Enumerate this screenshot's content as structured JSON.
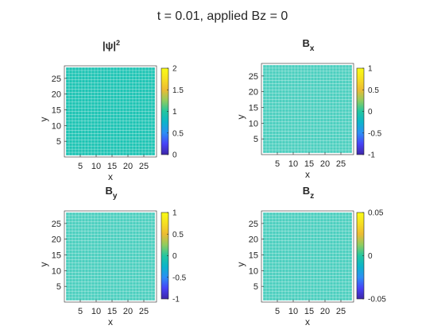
{
  "figure_title": "t = 0.01, applied Bz = 0",
  "colormap": [
    "#3e26a8",
    "#4743f7",
    "#2d8ef5",
    "#0cb4ca",
    "#22c6a0",
    "#8fcc60",
    "#ecbb33",
    "#f6df22",
    "#f9fb15"
  ],
  "chart_data": [
    {
      "type": "heatmap",
      "title": "|ψ|²",
      "title_parts": {
        "base": "|ψ|",
        "sup": "2",
        "sub": ""
      },
      "xlabel": "x",
      "ylabel": "y",
      "xticks": [
        5,
        10,
        15,
        20,
        25
      ],
      "yticks": [
        5,
        10,
        15,
        20,
        25
      ],
      "xlim": [
        0,
        29
      ],
      "ylim": [
        0,
        29
      ],
      "grid_size": 28,
      "clim": [
        0,
        2
      ],
      "colorbar_ticks": [
        0,
        0.5,
        1,
        1.5,
        2
      ],
      "colorbar_tick_labels": [
        "0",
        "0.5",
        "1",
        "1.5",
        "2"
      ],
      "field_value": 1.0,
      "field_color": "#1ec4b4"
    },
    {
      "type": "heatmap",
      "title": "Bx",
      "title_parts": {
        "base": "B",
        "sup": "",
        "sub": "x"
      },
      "xlabel": "x",
      "ylabel": "y",
      "xticks": [
        5,
        10,
        15,
        20,
        25
      ],
      "yticks": [
        5,
        10,
        15,
        20,
        25
      ],
      "xlim": [
        0,
        29
      ],
      "ylim": [
        0,
        29
      ],
      "grid_size": 28,
      "clim": [
        -1,
        1
      ],
      "colorbar_ticks": [
        -1,
        -0.5,
        0,
        0.5,
        1
      ],
      "colorbar_tick_labels": [
        "-1",
        "-0.5",
        "0",
        "0.5",
        "1"
      ],
      "field_value": 0,
      "field_color": "#4ccfbf"
    },
    {
      "type": "heatmap",
      "title": "By",
      "title_parts": {
        "base": "B",
        "sup": "",
        "sub": "y"
      },
      "xlabel": "x",
      "ylabel": "y",
      "xticks": [
        5,
        10,
        15,
        20,
        25
      ],
      "yticks": [
        5,
        10,
        15,
        20,
        25
      ],
      "xlim": [
        0,
        29
      ],
      "ylim": [
        0,
        29
      ],
      "grid_size": 28,
      "clim": [
        -1,
        1
      ],
      "colorbar_ticks": [
        -1,
        -0.5,
        0,
        0.5,
        1
      ],
      "colorbar_tick_labels": [
        "-1",
        "-0.5",
        "0",
        "0.5",
        "1"
      ],
      "field_value": 0,
      "field_color": "#4ccfbf"
    },
    {
      "type": "heatmap",
      "title": "Bz",
      "title_parts": {
        "base": "B",
        "sup": "",
        "sub": "z"
      },
      "xlabel": "x",
      "ylabel": "y",
      "xticks": [
        5,
        10,
        15,
        20,
        25
      ],
      "yticks": [
        5,
        10,
        15,
        20,
        25
      ],
      "xlim": [
        0,
        29
      ],
      "ylim": [
        0,
        29
      ],
      "grid_size": 28,
      "clim": [
        -0.05,
        0.05
      ],
      "colorbar_ticks": [
        -0.05,
        0,
        0.05
      ],
      "colorbar_tick_labels": [
        "-0.05",
        "0",
        "0.05"
      ],
      "field_value": 0,
      "field_color": "#4ccfbf"
    }
  ]
}
